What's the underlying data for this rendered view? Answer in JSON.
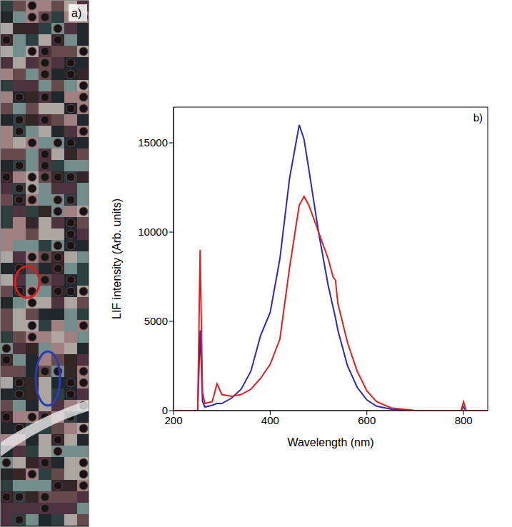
{
  "image": {
    "label": "a)"
  },
  "chart_data": {
    "type": "line",
    "label": "b)",
    "x_label": "Wavelength (nm)",
    "y_label": "LIF intensity (Arb. units)",
    "x": [
      200,
      240,
      250,
      255,
      260,
      265,
      280,
      290,
      300,
      320,
      340,
      360,
      380,
      400,
      420,
      440,
      460,
      470,
      480,
      500,
      520,
      530,
      535,
      540,
      560,
      580,
      600,
      620,
      650,
      700,
      795,
      800,
      805,
      850
    ],
    "series": [
      {
        "color": "#2b2bb8",
        "values": [
          0,
          0,
          0,
          4500,
          500,
          200,
          300,
          400,
          400,
          700,
          1200,
          2200,
          4200,
          5500,
          8500,
          13000,
          16000,
          15200,
          13500,
          10000,
          7000,
          5800,
          5200,
          4500,
          2500,
          1300,
          600,
          250,
          80,
          0,
          0,
          200,
          0,
          0
        ]
      },
      {
        "color": "#e02020",
        "values": [
          0,
          0,
          0,
          9000,
          1000,
          400,
          500,
          1500,
          900,
          800,
          900,
          1200,
          1800,
          2600,
          4000,
          8000,
          11500,
          12000,
          11500,
          10000,
          8500,
          7500,
          7300,
          6000,
          3800,
          2200,
          1100,
          500,
          150,
          0,
          0,
          500,
          0,
          0
        ]
      }
    ],
    "xlim": [
      200,
      850
    ],
    "xticks": [
      200,
      400,
      600,
      800
    ],
    "ylim": [
      0,
      17000
    ],
    "yticks": [
      0,
      5000,
      10000,
      15000
    ],
    "grid": false
  }
}
